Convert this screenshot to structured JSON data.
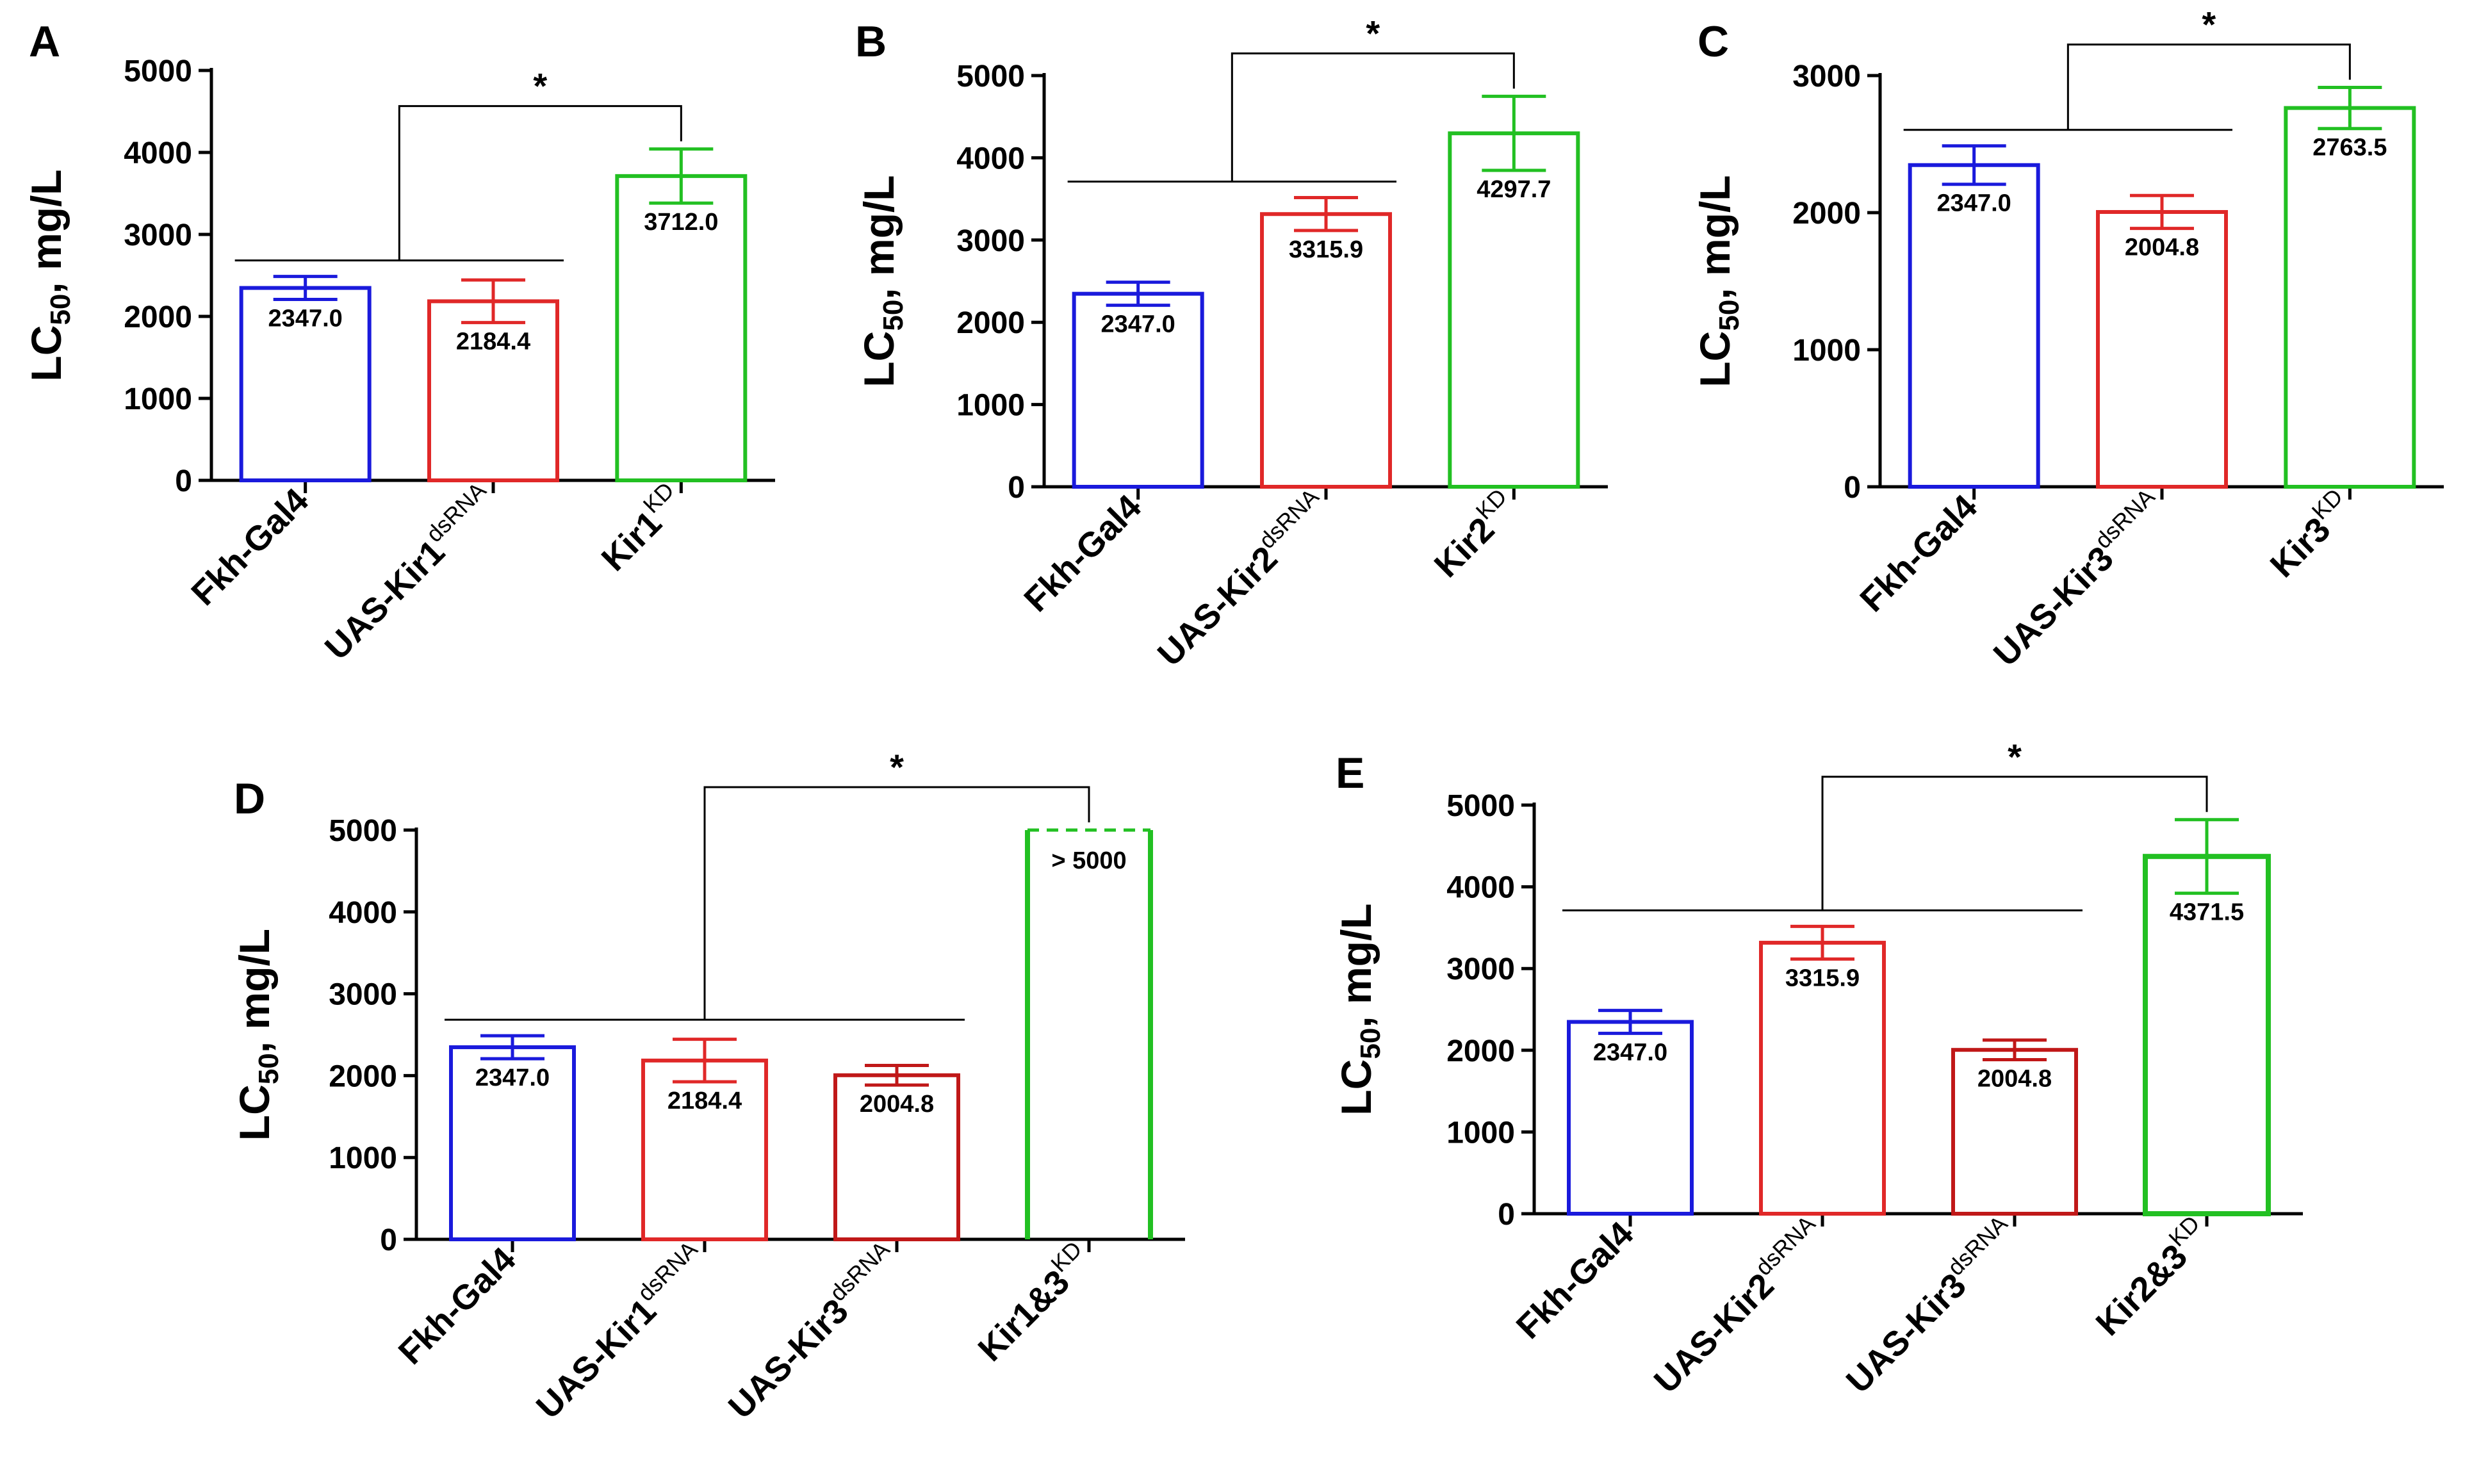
{
  "chart_data": [
    {
      "panel": "A",
      "type": "bar",
      "ylabel": "LC50, mg/L",
      "ylim": [
        0,
        5000
      ],
      "yticks": [
        0,
        1000,
        2000,
        3000,
        4000,
        5000
      ],
      "categories": [
        {
          "name": "Fkh-Gal4",
          "sup": ""
        },
        {
          "name": "UAS-Kir1",
          "sup": "dsRNA"
        },
        {
          "name": "Kir1",
          "sup": "KD"
        }
      ],
      "values": [
        2347.0,
        2184.4,
        3712.0
      ],
      "value_labels": [
        "2347.0",
        "2184.4",
        "3712.0"
      ],
      "errors": [
        140,
        260,
        330
      ],
      "colors": [
        "#1a1adc",
        "#e02828",
        "#22c022"
      ],
      "significance": {
        "label": "*",
        "target": 2,
        "groups": [
          0,
          1
        ]
      }
    },
    {
      "panel": "B",
      "type": "bar",
      "ylabel": "LC50, mg/L",
      "ylim": [
        0,
        5000
      ],
      "yticks": [
        0,
        1000,
        2000,
        3000,
        4000,
        5000
      ],
      "categories": [
        {
          "name": "Fkh-Gal4",
          "sup": ""
        },
        {
          "name": "UAS-Kir2",
          "sup": "dsRNA"
        },
        {
          "name": "Kir2",
          "sup": "KD"
        }
      ],
      "values": [
        2347.0,
        3315.9,
        4297.7
      ],
      "value_labels": [
        "2347.0",
        "3315.9",
        "4297.7"
      ],
      "errors": [
        140,
        200,
        450
      ],
      "colors": [
        "#1a1adc",
        "#e02828",
        "#22c022"
      ],
      "significance": {
        "label": "*",
        "target": 2,
        "groups": [
          0,
          1
        ]
      }
    },
    {
      "panel": "C",
      "type": "bar",
      "ylabel": "LC50, mg/L",
      "ylim": [
        0,
        3000
      ],
      "yticks": [
        0,
        1000,
        2000,
        3000
      ],
      "categories": [
        {
          "name": "Fkh-Gal4",
          "sup": ""
        },
        {
          "name": "UAS-Kir3",
          "sup": "dsRNA"
        },
        {
          "name": "Kir3",
          "sup": "KD"
        }
      ],
      "values": [
        2347.0,
        2004.8,
        2763.5
      ],
      "value_labels": [
        "2347.0",
        "2004.8",
        "2763.5"
      ],
      "errors": [
        140,
        120,
        150
      ],
      "colors": [
        "#1a1adc",
        "#e02828",
        "#22c022"
      ],
      "significance": {
        "label": "*",
        "target": 2,
        "groups": [
          0,
          1
        ]
      }
    },
    {
      "panel": "D",
      "type": "bar",
      "ylabel": "LC50, mg/L",
      "ylim": [
        0,
        5000
      ],
      "yticks": [
        0,
        1000,
        2000,
        3000,
        4000,
        5000
      ],
      "categories": [
        {
          "name": "Fkh-Gal4",
          "sup": ""
        },
        {
          "name": "UAS-Kir1",
          "sup": "dsRNA"
        },
        {
          "name": "UAS-Kir3",
          "sup": "dsRNA"
        },
        {
          "name": "Kir1&3",
          "sup": "KD"
        }
      ],
      "values": [
        2347.0,
        2184.4,
        2004.8,
        5000
      ],
      "value_labels": [
        "2347.0",
        "2184.4",
        "2004.8",
        "> 5000"
      ],
      "errors": [
        140,
        260,
        120,
        0
      ],
      "open_top": [
        false,
        false,
        false,
        true
      ],
      "colors": [
        "#1a1adc",
        "#e02828",
        "#c01818",
        "#22c022"
      ],
      "significance": {
        "label": "*",
        "target": 3,
        "groups": [
          0,
          1,
          2
        ]
      }
    },
    {
      "panel": "E",
      "type": "bar",
      "ylabel": "LC50, mg/L",
      "ylim": [
        0,
        5000
      ],
      "yticks": [
        0,
        1000,
        2000,
        3000,
        4000,
        5000
      ],
      "categories": [
        {
          "name": "Fkh-Gal4",
          "sup": ""
        },
        {
          "name": "UAS-Kir2",
          "sup": "dsRNA"
        },
        {
          "name": "UAS-Kir3",
          "sup": "dsRNA"
        },
        {
          "name": "Kir2&3",
          "sup": "KD"
        }
      ],
      "values": [
        2347.0,
        3315.9,
        2004.8,
        4371.5
      ],
      "value_labels": [
        "2347.0",
        "3315.9",
        "2004.8",
        "4371.5"
      ],
      "errors": [
        140,
        200,
        120,
        450
      ],
      "colors": [
        "#1a1adc",
        "#e02828",
        "#c01818",
        "#22c022"
      ],
      "significance": {
        "label": "*",
        "target": 3,
        "groups": [
          0,
          1,
          2
        ]
      }
    }
  ]
}
